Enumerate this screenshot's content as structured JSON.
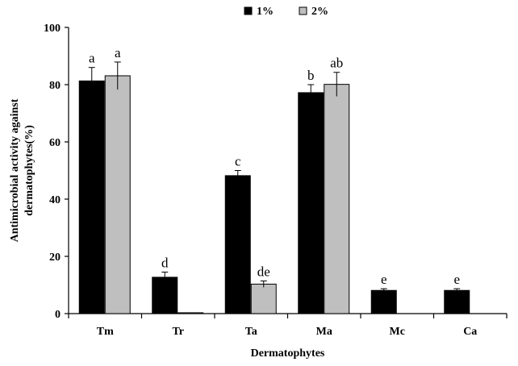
{
  "chart_data": {
    "type": "bar",
    "title": "",
    "xlabel": "Dermatophytes",
    "ylabel": "Antimicrobial activity against dermatophytes(%)",
    "ylabel_lines": [
      "Antimicrobial activity against",
      "dermatophytes(%)"
    ],
    "ylim": [
      0,
      100
    ],
    "yticks": [
      0,
      20,
      40,
      60,
      80,
      100
    ],
    "grid": false,
    "legend_position": "top-center",
    "categories": [
      "Tm",
      "Tr",
      "Ta",
      "Ma",
      "Mc",
      "Ca"
    ],
    "series": [
      {
        "name": "1%",
        "color": "#000000",
        "values": [
          81.3,
          12.7,
          48.2,
          77.2,
          8.1,
          8.1
        ],
        "errors": [
          4.7,
          1.8,
          1.8,
          2.8,
          0.6,
          0.6
        ],
        "labels": [
          "a",
          "d",
          "c",
          "b",
          "e",
          "e"
        ]
      },
      {
        "name": "2%",
        "color": "#bfbfbf",
        "values": [
          83.1,
          0.3,
          10.3,
          80.1,
          0,
          0
        ],
        "errors": [
          4.8,
          0,
          1.1,
          4.2,
          0,
          0
        ],
        "labels": [
          "a",
          "",
          "de",
          "ab",
          "",
          ""
        ]
      }
    ]
  }
}
